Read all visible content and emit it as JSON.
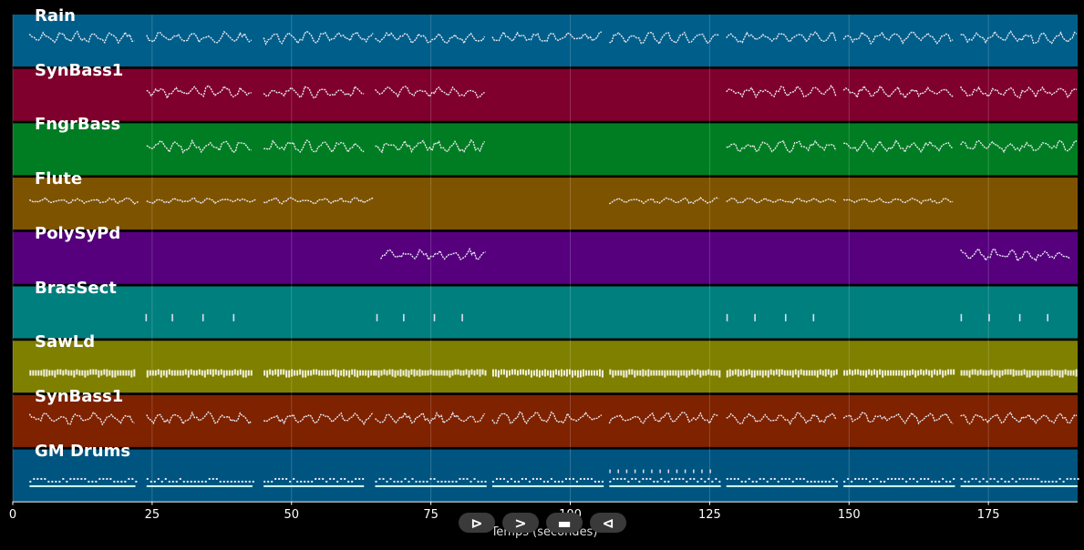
{
  "chart_data": {
    "type": "piano-roll",
    "xlabel": "Temps (secondes)",
    "xlim": [
      0,
      191
    ],
    "x_ticks": [
      0,
      25,
      50,
      75,
      100,
      125,
      150,
      175
    ],
    "grid": true,
    "tracks": [
      {
        "name": "Rain",
        "color": "#005e8a",
        "style": "dense",
        "segments": [
          [
            3,
            22
          ],
          [
            24,
            43
          ],
          [
            45,
            65
          ],
          [
            65,
            85
          ],
          [
            86,
            106
          ],
          [
            107,
            127
          ],
          [
            128,
            148
          ],
          [
            149,
            169
          ],
          [
            170,
            191
          ]
        ]
      },
      {
        "name": "SynBass1",
        "color": "#7f002c",
        "style": "dense",
        "segments": [
          [
            24,
            43
          ],
          [
            45,
            63
          ],
          [
            65,
            85
          ],
          [
            128,
            148
          ],
          [
            149,
            169
          ],
          [
            170,
            191
          ]
        ]
      },
      {
        "name": "FngrBass",
        "color": "#007d22",
        "style": "dense",
        "segments": [
          [
            24,
            43
          ],
          [
            45,
            63
          ],
          [
            65,
            85
          ],
          [
            128,
            148
          ],
          [
            149,
            169
          ],
          [
            170,
            191
          ]
        ]
      },
      {
        "name": "Flute",
        "color": "#7e5300",
        "style": "dense",
        "segments": [
          [
            3,
            23
          ],
          [
            24,
            44
          ],
          [
            45,
            65
          ],
          [
            107,
            127
          ],
          [
            128,
            148
          ],
          [
            149,
            169
          ]
        ]
      },
      {
        "name": "PolySyPd",
        "color": "#56007e",
        "style": "dense",
        "segments": [
          [
            66,
            85
          ],
          [
            170,
            190
          ]
        ]
      },
      {
        "name": "BrasSect",
        "color": "#007f7f",
        "style": "sparse",
        "notes": [
          23.8,
          28.5,
          34,
          39.5,
          65.2,
          70,
          75.5,
          80.5,
          128,
          133,
          138.5,
          143.5,
          170,
          175,
          180.5,
          185.5
        ]
      },
      {
        "name": "SawLd",
        "color": "#7f7f00",
        "style": "rhythm",
        "segments": [
          [
            3,
            22
          ],
          [
            24,
            43
          ],
          [
            45,
            65
          ],
          [
            65,
            85
          ],
          [
            86,
            106
          ],
          [
            107,
            127
          ],
          [
            128,
            148
          ],
          [
            149,
            169
          ],
          [
            170,
            191
          ]
        ]
      },
      {
        "name": "SynBass1",
        "color": "#7e2200",
        "style": "dense",
        "segments": [
          [
            3,
            22
          ],
          [
            24,
            43
          ],
          [
            45,
            65
          ],
          [
            65,
            85
          ],
          [
            86,
            106
          ],
          [
            107,
            127
          ],
          [
            128,
            148
          ],
          [
            149,
            169
          ],
          [
            170,
            191
          ]
        ]
      },
      {
        "name": "GM Drums",
        "color": "#005580",
        "style": "drums",
        "segments": [
          [
            3,
            22
          ],
          [
            24,
            43
          ],
          [
            45,
            63
          ],
          [
            65,
            85
          ],
          [
            86,
            106
          ],
          [
            107,
            127
          ],
          [
            128,
            148
          ],
          [
            149,
            169
          ],
          [
            170,
            191
          ]
        ]
      }
    ]
  },
  "transport": {
    "play_label": "⊳",
    "forward_label": ">",
    "stop_label": "▬",
    "back_label": "⊲"
  }
}
